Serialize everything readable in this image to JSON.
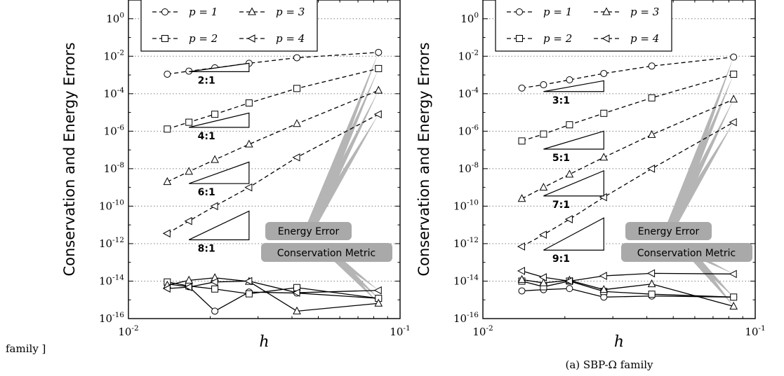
{
  "page": {
    "left_caption_fragment": "family ]",
    "right_caption": "(a) SBP-Ω family"
  },
  "common": {
    "ylabel": "Conservation and Energy Errors",
    "xlabel": "h",
    "xticks": [
      {
        "value": 0.01,
        "base": "10",
        "exp": "-2"
      },
      {
        "value": 0.1,
        "base": "10",
        "exp": "-1"
      }
    ],
    "yticks": [
      {
        "value": 1e-16,
        "base": "10",
        "exp": "-16"
      },
      {
        "value": 1e-14,
        "base": "10",
        "exp": "-14"
      },
      {
        "value": 1e-12,
        "base": "10",
        "exp": "-12"
      },
      {
        "value": 1e-10,
        "base": "10",
        "exp": "-10"
      },
      {
        "value": 1e-08,
        "base": "10",
        "exp": "-8"
      },
      {
        "value": 1e-06,
        "base": "10",
        "exp": "-6"
      },
      {
        "value": 0.0001,
        "base": "10",
        "exp": "-4"
      },
      {
        "value": 0.01,
        "base": "10",
        "exp": "-2"
      },
      {
        "value": 1,
        "base": "10",
        "exp": "0"
      }
    ],
    "legend": [
      {
        "p": 1,
        "label": "p = 1",
        "marker": "circle-icon"
      },
      {
        "p": 2,
        "label": "p = 2",
        "marker": "square-icon"
      },
      {
        "p": 3,
        "label": "p = 3",
        "marker": "triangle-up-icon"
      },
      {
        "p": 4,
        "label": "p = 4",
        "marker": "triangle-left-icon"
      }
    ],
    "annotation_energy": "Energy Error",
    "annotation_conservation": "Conservation Metric",
    "colors": {
      "lines": "#000000",
      "annotation_bg": "#a9a9a9",
      "leader": "#b5b5b5",
      "grid": "#7f7f7f"
    }
  },
  "chart_data": [
    {
      "type": "line",
      "xscale": "log",
      "yscale": "log",
      "xlim": [
        0.01,
        0.1
      ],
      "ylim": [
        1e-16,
        10
      ],
      "grid": "y-dotted",
      "legend_placement": "top-center",
      "xlabel": "h",
      "ylabel": "Conservation and Energy Errors",
      "energy_series": [
        {
          "p": 1,
          "x": [
            0.0139,
            0.0167,
            0.0208,
            0.0278,
            0.0417,
            0.0833
          ],
          "y": [
            0.0011,
            0.0016,
            0.0024,
            0.0042,
            0.0083,
            0.016
          ]
        },
        {
          "p": 2,
          "x": [
            0.0139,
            0.0167,
            0.0208,
            0.0278,
            0.0417,
            0.0833
          ],
          "y": [
            1.3e-06,
            3e-06,
            8e-06,
            3.2e-05,
            0.00019,
            0.0022
          ]
        },
        {
          "p": 3,
          "x": [
            0.0139,
            0.0167,
            0.0208,
            0.0278,
            0.0417,
            0.0833
          ],
          "y": [
            2e-09,
            7e-09,
            3e-08,
            2e-07,
            2.5e-06,
            0.00015
          ]
        },
        {
          "p": 4,
          "x": [
            0.0139,
            0.0167,
            0.0208,
            0.0278,
            0.0417,
            0.0833
          ],
          "y": [
            3.5e-12,
            1.6e-11,
            1e-10,
            1e-09,
            4e-08,
            8e-06
          ]
        }
      ],
      "conservation_series": [
        {
          "p": 1,
          "x": [
            0.0139,
            0.0167,
            0.0208,
            0.0278,
            0.0417,
            0.0833
          ],
          "y": [
            7e-15,
            5e-15,
            2.5e-16,
            2.6e-15,
            2.3e-15,
            1.2e-15
          ]
        },
        {
          "p": 2,
          "x": [
            0.0139,
            0.0167,
            0.0208,
            0.0278,
            0.0417,
            0.0833
          ],
          "y": [
            9e-15,
            5.5e-15,
            3.8e-15,
            2.1e-15,
            4.5e-15,
            1.2e-15
          ]
        },
        {
          "p": 3,
          "x": [
            0.0139,
            0.0167,
            0.0208,
            0.0278,
            0.0417,
            0.0833
          ],
          "y": [
            6e-15,
            1.1e-14,
            1.5e-14,
            9.5e-15,
            2.5e-16,
            6.5e-16
          ]
        },
        {
          "p": 4,
          "x": [
            0.0139,
            0.0167,
            0.0208,
            0.0278,
            0.0417,
            0.0833
          ],
          "y": [
            4e-15,
            4.8e-15,
            9e-15,
            1e-14,
            2.4e-15,
            3.2e-15
          ]
        }
      ],
      "slope_triangles": [
        {
          "label": "2:1",
          "x": [
            0.0167,
            0.0278
          ],
          "y": 0.0015
        },
        {
          "label": "4:1",
          "x": [
            0.0167,
            0.0278
          ],
          "y": 1.6e-06
        },
        {
          "label": "6:1",
          "x": [
            0.0167,
            0.0278
          ],
          "y": 1.6e-09
        },
        {
          "label": "8:1",
          "x": [
            0.0167,
            0.0278
          ],
          "y": 1.6e-12
        }
      ]
    },
    {
      "type": "line",
      "xscale": "log",
      "yscale": "log",
      "xlim": [
        0.01,
        0.1
      ],
      "ylim": [
        1e-16,
        10
      ],
      "grid": "y-dotted",
      "legend_placement": "top-center",
      "xlabel": "h",
      "ylabel": "Conservation and Energy Errors",
      "energy_series": [
        {
          "p": 1,
          "x": [
            0.0139,
            0.0167,
            0.0208,
            0.0278,
            0.0417,
            0.0833
          ],
          "y": [
            0.0002,
            0.0003,
            0.00055,
            0.0012,
            0.003,
            0.009
          ]
        },
        {
          "p": 2,
          "x": [
            0.0139,
            0.0167,
            0.0208,
            0.0278,
            0.0417,
            0.0833
          ],
          "y": [
            3e-07,
            7e-07,
            2.2e-06,
            9e-06,
            6e-05,
            0.0011
          ]
        },
        {
          "p": 3,
          "x": [
            0.0139,
            0.0167,
            0.0208,
            0.0278,
            0.0417,
            0.0833
          ],
          "y": [
            2.5e-10,
            1e-09,
            5e-09,
            4e-08,
            6.5e-07,
            5e-05
          ]
        },
        {
          "p": 4,
          "x": [
            0.0139,
            0.0167,
            0.0208,
            0.0278,
            0.0417,
            0.0833
          ],
          "y": [
            7e-13,
            3e-12,
            2e-11,
            3e-10,
            1e-08,
            3e-06
          ]
        }
      ],
      "conservation_series": [
        {
          "p": 1,
          "x": [
            0.0139,
            0.0167,
            0.0208,
            0.0278,
            0.0417,
            0.0833
          ],
          "y": [
            3e-15,
            3.5e-15,
            4e-15,
            1.4e-15,
            1.6e-15,
            1.4e-15
          ]
        },
        {
          "p": 2,
          "x": [
            0.0139,
            0.0167,
            0.0208,
            0.0278,
            0.0417,
            0.0833
          ],
          "y": [
            1e-14,
            5e-15,
            1e-14,
            2.8e-15,
            2e-15,
            1.4e-15
          ]
        },
        {
          "p": 3,
          "x": [
            0.0139,
            0.0167,
            0.0208,
            0.0278,
            0.0417,
            0.0833
          ],
          "y": [
            1.2e-14,
            8e-15,
            1.1e-14,
            3.5e-15,
            7e-15,
            4.5e-16
          ]
        },
        {
          "p": 4,
          "x": [
            0.0139,
            0.0167,
            0.0208,
            0.0278,
            0.0417,
            0.0833
          ],
          "y": [
            3.5e-14,
            1.6e-14,
            1e-14,
            1.9e-14,
            2.6e-14,
            2.4e-14
          ]
        }
      ],
      "slope_triangles": [
        {
          "label": "3:1",
          "x": [
            0.0167,
            0.0278
          ],
          "y": 0.00013
        },
        {
          "label": "5:1",
          "x": [
            0.0167,
            0.0278
          ],
          "y": 1.1e-07
        },
        {
          "label": "7:1",
          "x": [
            0.0167,
            0.0278
          ],
          "y": 3.5e-10
        },
        {
          "label": "9:1",
          "x": [
            0.0167,
            0.0278
          ],
          "y": 4.5e-13
        }
      ]
    }
  ]
}
